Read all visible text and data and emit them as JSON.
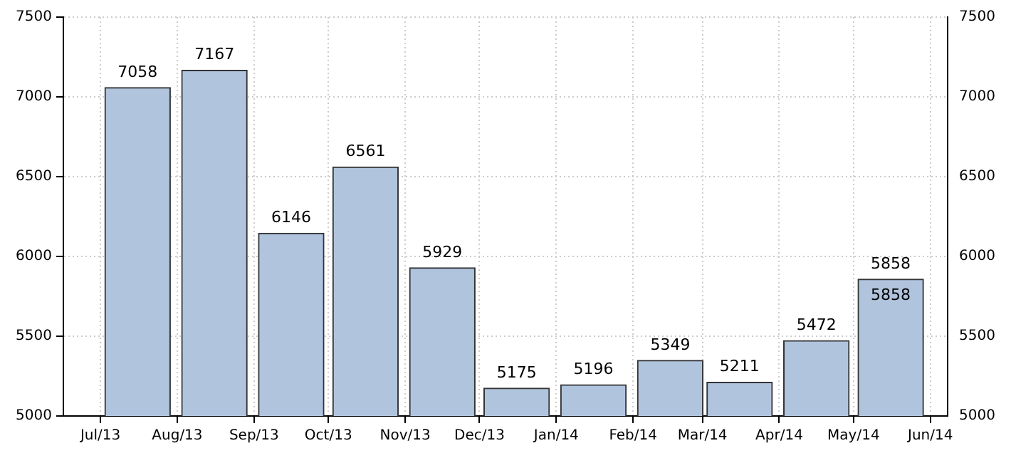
{
  "chart_data": {
    "type": "bar",
    "x": [
      "2013-07-16",
      "2013-08-16",
      "2013-09-16",
      "2013-10-16",
      "2013-11-16",
      "2013-12-16",
      "2014-01-16",
      "2014-02-16",
      "2014-03-16",
      "2014-04-16",
      "2014-05-16"
    ],
    "values": [
      7058,
      7167,
      6146,
      6561,
      5929,
      5175,
      5196,
      5349,
      5211,
      5472,
      5858
    ],
    "color": "#b0c4de",
    "xlim": [
      "2013-06-16",
      "2014-06-08"
    ],
    "xticks": [
      {
        "value": "2013-07-01",
        "label": "Jul/13"
      },
      {
        "value": "2013-08-01",
        "label": "Aug/13"
      },
      {
        "value": "2013-09-01",
        "label": "Sep/13"
      },
      {
        "value": "2013-10-01",
        "label": "Oct/13"
      },
      {
        "value": "2013-11-01",
        "label": "Nov/13"
      },
      {
        "value": "2013-12-01",
        "label": "Dec/13"
      },
      {
        "value": "2014-01-01",
        "label": "Jan/14"
      },
      {
        "value": "2014-02-01",
        "label": "Feb/14"
      },
      {
        "value": "2014-03-01",
        "label": "Mar/14"
      },
      {
        "value": "2014-04-01",
        "label": "Apr/14"
      },
      {
        "value": "2014-05-01",
        "label": "May/14"
      },
      {
        "value": "2014-06-01",
        "label": "Jun/14"
      }
    ],
    "ylim": [
      5000,
      7500
    ],
    "yticks": [
      5000,
      5500,
      6000,
      6500,
      7000,
      7500
    ],
    "y2lim": [
      5000,
      7500
    ],
    "y2ticks": [
      5000,
      5500,
      6000,
      6500,
      7000,
      7500
    ],
    "grid": true,
    "legend": false,
    "data_labels": true,
    "annotations": [
      {
        "text": "5858",
        "x": "2014-05-16",
        "y": 5858
      }
    ]
  }
}
